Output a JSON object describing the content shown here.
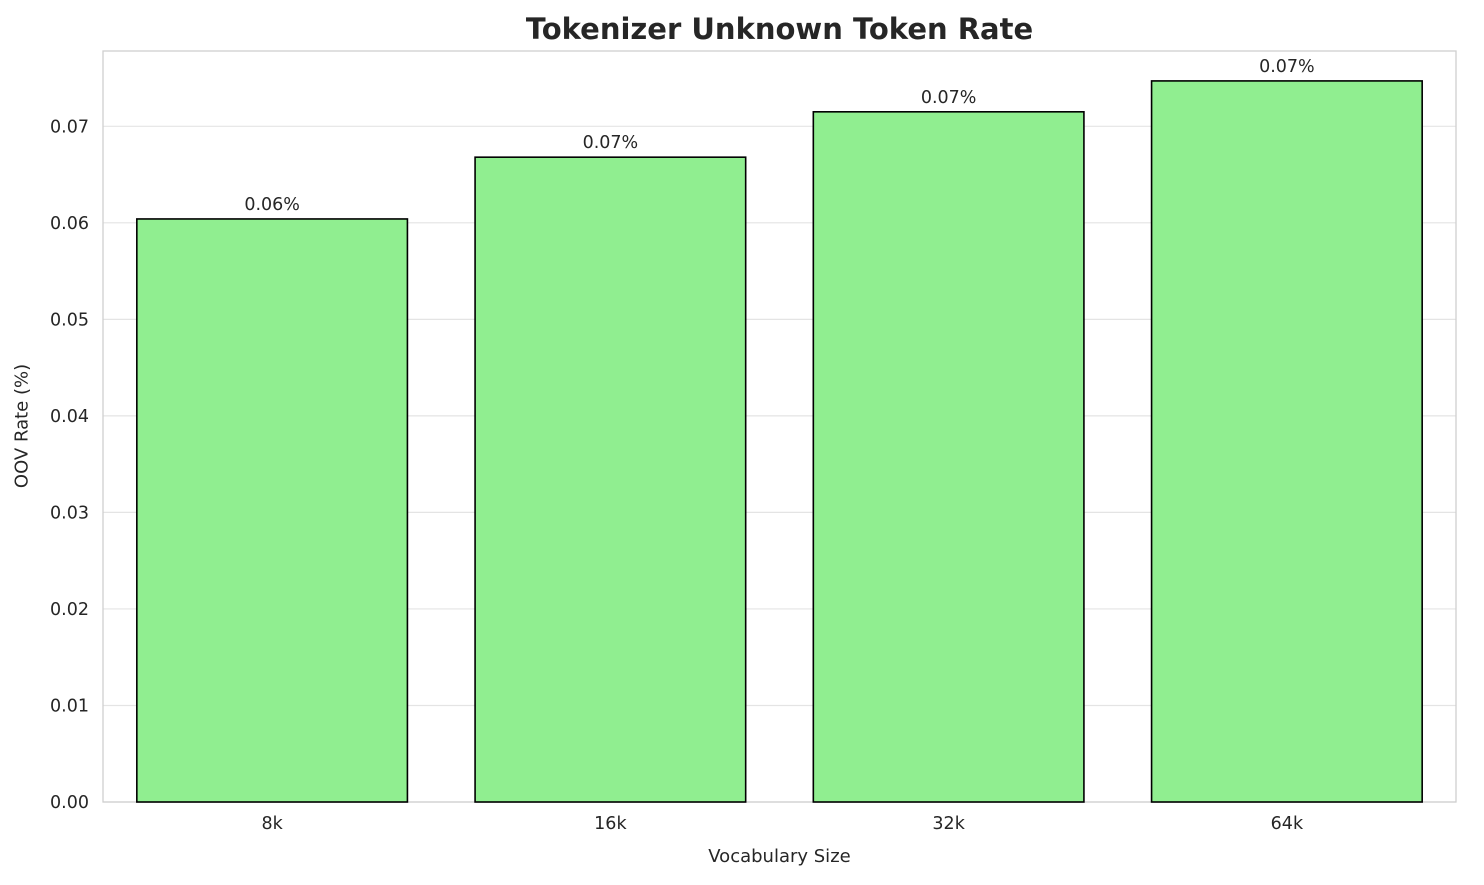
{
  "chart_data": {
    "type": "bar",
    "title": "Tokenizer Unknown Token Rate",
    "xlabel": "Vocabulary Size",
    "ylabel": "OOV Rate (%)",
    "categories": [
      "8k",
      "16k",
      "32k",
      "64k"
    ],
    "values": [
      0.0604,
      0.0668,
      0.0715,
      0.0747
    ],
    "bar_labels": [
      "0.06%",
      "0.07%",
      "0.07%",
      "0.07%"
    ],
    "ylim": [
      0,
      0.0778
    ],
    "yticks": [
      0.0,
      0.01,
      0.02,
      0.03,
      0.04,
      0.05,
      0.06,
      0.07
    ],
    "ytick_labels": [
      "0.00",
      "0.01",
      "0.02",
      "0.03",
      "0.04",
      "0.05",
      "0.06",
      "0.07"
    ],
    "grid": true,
    "legend": "none",
    "colors": {
      "bar_fill": "#90EE90",
      "bar_edge": "#000000",
      "grid": "#e4e4e4",
      "spine": "#cfcfcf",
      "text": "#262626",
      "background": "#ffffff"
    }
  }
}
